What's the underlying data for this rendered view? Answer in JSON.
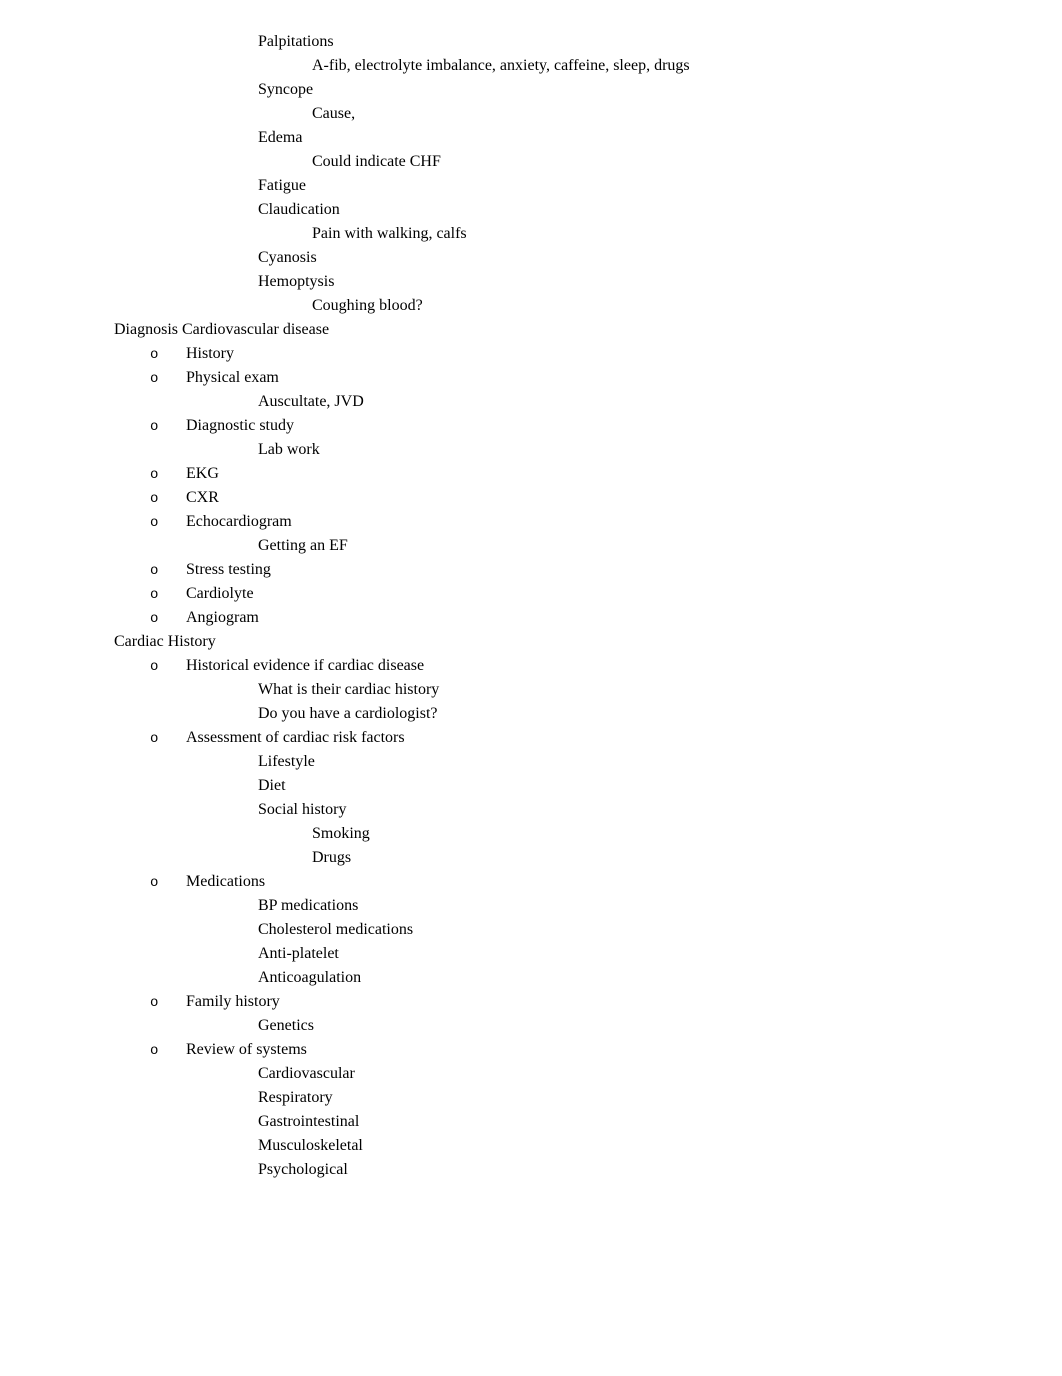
{
  "markers": {
    "box": "",
    "circle": "o"
  },
  "continuation": {
    "items": [
      {
        "label": "Palpitations",
        "children": [
          {
            "label": "A-fib, electrolyte imbalance, anxiety, caffeine, sleep, drugs"
          }
        ]
      },
      {
        "label": "Syncope",
        "children": [
          {
            "label": "Cause,"
          }
        ]
      },
      {
        "label": "Edema",
        "children": [
          {
            "label": "Could indicate CHF"
          }
        ]
      },
      {
        "label": "Fatigue"
      },
      {
        "label": "Claudication",
        "children": [
          {
            "label": "Pain with walking, calfs"
          }
        ]
      },
      {
        "label": "Cyanosis"
      },
      {
        "label": "Hemoptysis",
        "children": [
          {
            "label": "Coughing blood?"
          }
        ]
      }
    ]
  },
  "sections": [
    {
      "label": "Diagnosis Cardiovascular disease",
      "items": [
        {
          "label": "History"
        },
        {
          "label": "Physical exam",
          "children": [
            {
              "label": "Auscultate, JVD"
            }
          ]
        },
        {
          "label": "Diagnostic study",
          "children": [
            {
              "label": "Lab work"
            }
          ]
        },
        {
          "label": "EKG"
        },
        {
          "label": "CXR"
        },
        {
          "label": "Echocardiogram",
          "children": [
            {
              "label": "Getting an EF"
            }
          ]
        },
        {
          "label": "Stress testing"
        },
        {
          "label": "Cardiolyte"
        },
        {
          "label": "Angiogram"
        }
      ]
    },
    {
      "label": "Cardiac History",
      "items": [
        {
          "label": "Historical evidence if cardiac disease",
          "children": [
            {
              "label": "What is their cardiac history"
            },
            {
              "label": "Do you have a cardiologist?"
            }
          ]
        },
        {
          "label": "Assessment of cardiac risk factors",
          "children": [
            {
              "label": "Lifestyle"
            },
            {
              "label": "Diet"
            },
            {
              "label": "Social history",
              "children": [
                {
                  "label": "Smoking"
                },
                {
                  "label": "Drugs"
                }
              ]
            }
          ]
        },
        {
          "label": "Medications",
          "children": [
            {
              "label": "BP medications"
            },
            {
              "label": "Cholesterol medications"
            },
            {
              "label": "Anti-platelet"
            },
            {
              "label": "Anticoagulation"
            }
          ]
        },
        {
          "label": "Family history",
          "children": [
            {
              "label": "Genetics"
            }
          ]
        },
        {
          "label": "Review of systems",
          "children": [
            {
              "label": "Cardiovascular"
            },
            {
              "label": "Respiratory"
            },
            {
              "label": "Gastrointestinal"
            },
            {
              "label": "Musculoskeletal"
            },
            {
              "label": "Psychological"
            }
          ]
        }
      ]
    }
  ]
}
